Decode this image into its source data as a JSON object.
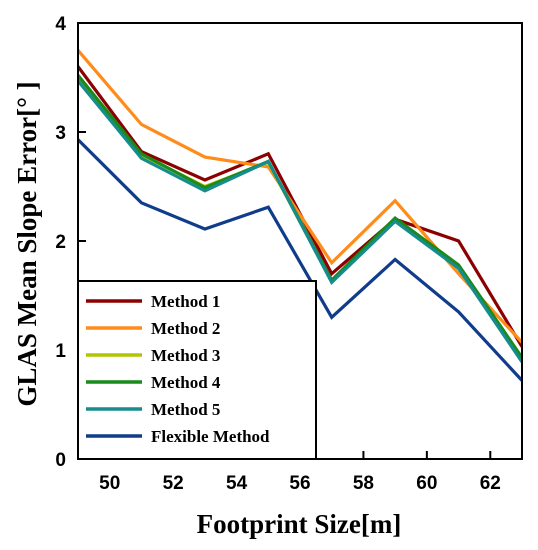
{
  "chart_data": {
    "type": "line",
    "xlabel": "Footprint Size[m]",
    "ylabel": "GLAS Mean Slope Error[° ]",
    "xlim": [
      49,
      63
    ],
    "ylim": [
      0,
      4
    ],
    "xticks": [
      50,
      52,
      54,
      56,
      58,
      60,
      62
    ],
    "yticks": [
      0,
      1,
      2,
      3,
      4
    ],
    "legend_position": "bottom-left",
    "x": [
      49,
      51,
      53,
      55,
      57,
      59,
      61,
      63
    ],
    "series": [
      {
        "name": "Method 1",
        "color": "#8b0000",
        "values": [
          3.6,
          2.82,
          2.56,
          2.8,
          1.7,
          2.2,
          2.0,
          1.03
        ]
      },
      {
        "name": "Method 2",
        "color": "#ff8c1a",
        "values": [
          3.75,
          3.07,
          2.77,
          2.68,
          1.8,
          2.37,
          1.7,
          1.07
        ]
      },
      {
        "name": "Method 3",
        "color": "#b4c400",
        "values": [
          3.5,
          2.79,
          2.5,
          2.72,
          1.63,
          2.2,
          1.76,
          0.92
        ]
      },
      {
        "name": "Method 4",
        "color": "#1a8a1a",
        "values": [
          3.52,
          2.8,
          2.49,
          2.73,
          1.64,
          2.21,
          1.78,
          0.93
        ]
      },
      {
        "name": "Method 5",
        "color": "#168c8c",
        "values": [
          3.47,
          2.76,
          2.46,
          2.73,
          1.62,
          2.18,
          1.75,
          0.89
        ]
      },
      {
        "name": "Flexible Method",
        "color": "#0f3d8c",
        "values": [
          2.93,
          2.35,
          2.11,
          2.31,
          1.3,
          1.83,
          1.35,
          0.72
        ]
      }
    ]
  }
}
